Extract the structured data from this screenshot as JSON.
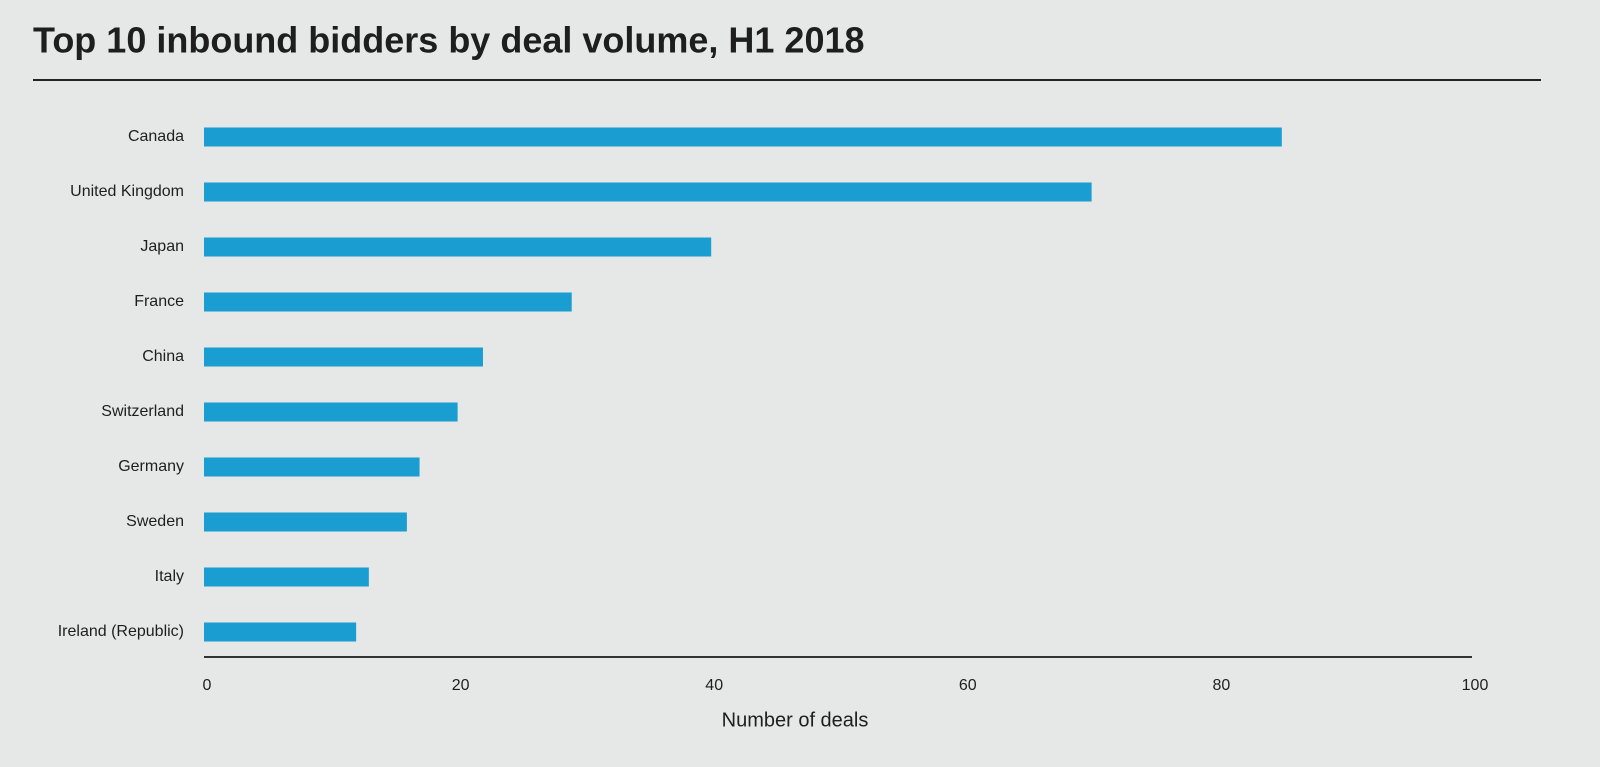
{
  "chart_data": {
    "type": "hbar",
    "title": "Top 10 inbound bidders by deal volume, H1 2018",
    "categories": [
      "Canada",
      "United Kingdom",
      "Japan",
      "France",
      "China",
      "Switzerland",
      "Germany",
      "Sweden",
      "Italy",
      "Ireland (Republic)"
    ],
    "values": [
      85,
      70,
      40,
      29,
      22,
      20,
      17,
      16,
      13,
      12
    ],
    "color": "#1a9dd0",
    "xlim": [
      0,
      100
    ],
    "xticks": [
      0,
      20,
      40,
      60,
      80,
      100
    ],
    "x_label": "Number of deals",
    "grid": false
  }
}
